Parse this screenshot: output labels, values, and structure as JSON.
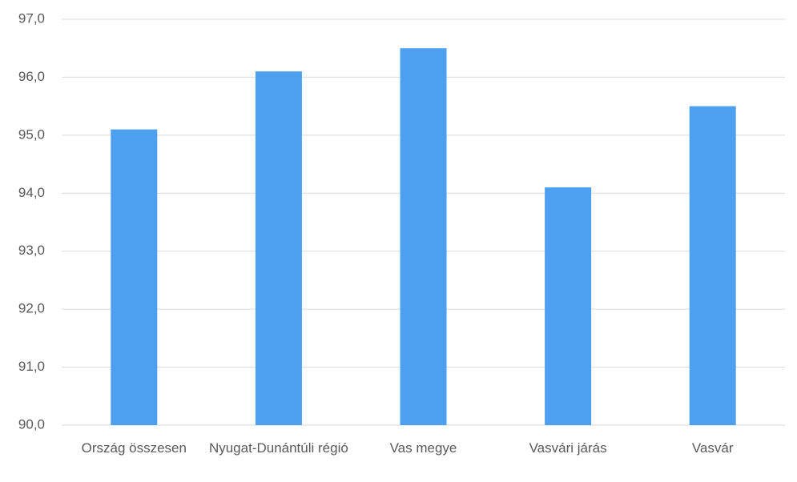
{
  "chart_data": {
    "type": "bar",
    "categories": [
      "Ország összesen",
      "Nyugat-Dunántúli régió",
      "Vas megye",
      "Vasvári járás",
      "Vasvár"
    ],
    "values": [
      95.1,
      96.1,
      96.5,
      94.1,
      95.5
    ],
    "color": "#4da0f0",
    "ylim": [
      90,
      97
    ],
    "yticks": [
      {
        "value": 90,
        "label": "90,0"
      },
      {
        "value": 91,
        "label": "91,0"
      },
      {
        "value": 92,
        "label": "92,0"
      },
      {
        "value": 93,
        "label": "93,0"
      },
      {
        "value": 94,
        "label": "94,0"
      },
      {
        "value": 95,
        "label": "95,0"
      },
      {
        "value": 96,
        "label": "96,0"
      },
      {
        "value": 97,
        "label": "97,0"
      }
    ],
    "grid": true
  }
}
